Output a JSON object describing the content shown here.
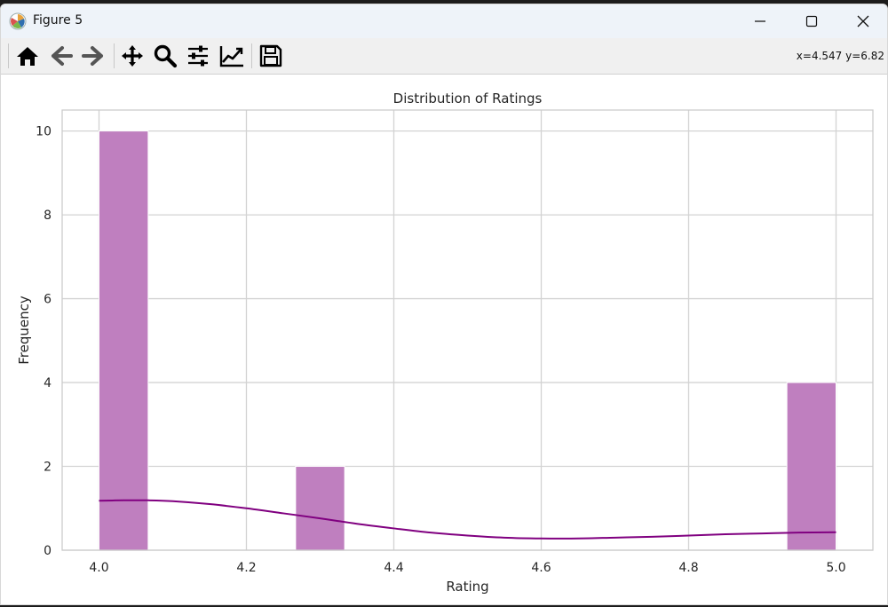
{
  "window": {
    "title": "Figure 5",
    "icon": "matplotlib-icon",
    "controls": [
      "minimize-icon",
      "maximize-icon",
      "close-icon"
    ]
  },
  "toolbar": {
    "buttons": [
      {
        "name": "home-button",
        "icon": "home-icon"
      },
      {
        "name": "back-button",
        "icon": "arrow-left-icon"
      },
      {
        "name": "forward-button",
        "icon": "arrow-right-icon"
      },
      {
        "name": "pan-button",
        "icon": "move-icon"
      },
      {
        "name": "zoom-button",
        "icon": "magnifier-icon"
      },
      {
        "name": "configure-subplots-button",
        "icon": "sliders-icon"
      },
      {
        "name": "edit-axis-button",
        "icon": "line-chart-icon"
      },
      {
        "name": "save-button",
        "icon": "floppy-disk-icon"
      }
    ],
    "coords": "x=4.547 y=6.82"
  },
  "chart_data": {
    "type": "bar",
    "title": "Distribution of Ratings",
    "xlabel": "Rating",
    "ylabel": "Frequency",
    "xlim": [
      3.95,
      5.05
    ],
    "ylim": [
      0,
      10.5
    ],
    "xticks": [
      "4.0",
      "4.2",
      "4.4",
      "4.6",
      "4.8",
      "5.0"
    ],
    "yticks": [
      "0",
      "2",
      "4",
      "6",
      "8",
      "10"
    ],
    "grid": true,
    "bar_color": "#bf7fbf",
    "bins": [
      {
        "x0": 4.0,
        "x1": 4.0667,
        "count": 10
      },
      {
        "x0": 4.2667,
        "x1": 4.3333,
        "count": 2
      },
      {
        "x0": 4.9333,
        "x1": 5.0,
        "count": 4
      }
    ],
    "kde": {
      "color": "#800080",
      "x": [
        4.0,
        4.033,
        4.067,
        4.1,
        4.15,
        4.2,
        4.25,
        4.3,
        4.35,
        4.4,
        4.45,
        4.5,
        4.55,
        4.6,
        4.65,
        4.7,
        4.75,
        4.8,
        4.85,
        4.9,
        4.95,
        5.0
      ],
      "y": [
        1.18,
        1.19,
        1.19,
        1.17,
        1.1,
        1.0,
        0.88,
        0.76,
        0.63,
        0.52,
        0.42,
        0.35,
        0.3,
        0.28,
        0.28,
        0.3,
        0.32,
        0.35,
        0.38,
        0.4,
        0.42,
        0.43
      ]
    }
  }
}
